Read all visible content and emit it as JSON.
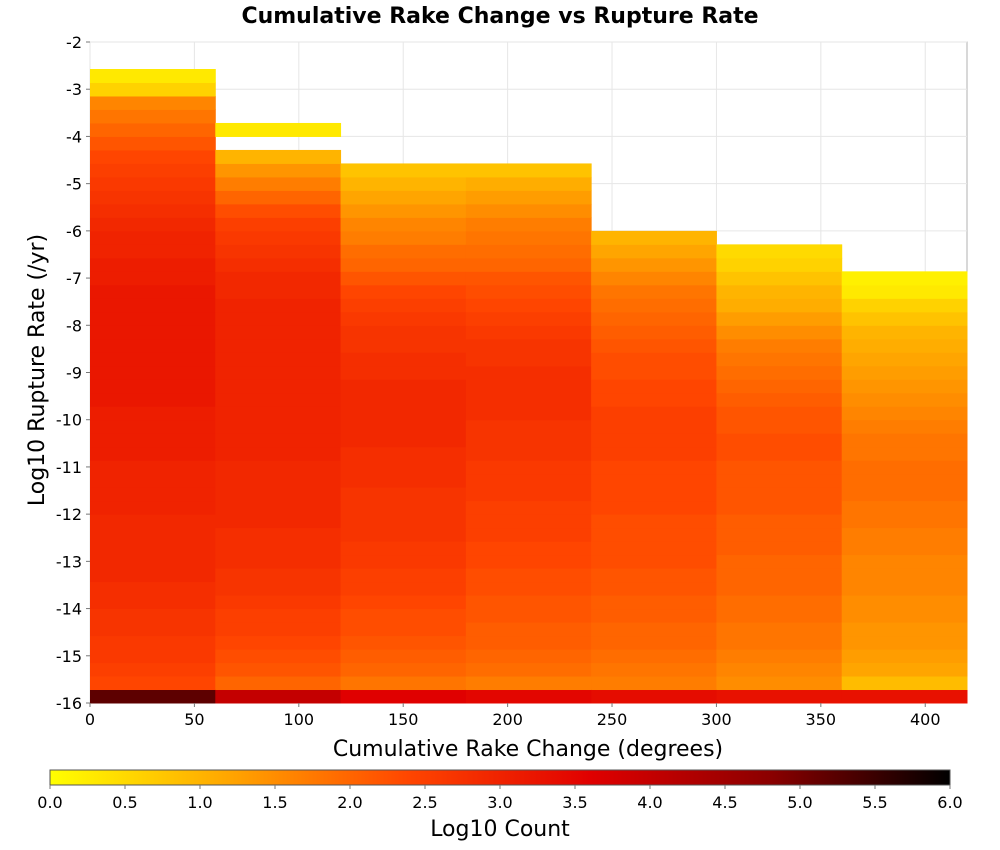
{
  "chart_data": {
    "type": "heatmap",
    "title": "Cumulative Rake Change vs Rupture Rate",
    "xlabel": "Cumulative Rake Change (degrees)",
    "ylabel": "Log10 Rupture Rate (/yr)",
    "colorbar_label": "Log10 Count",
    "xlim": [
      0,
      420
    ],
    "ylim": [
      -16,
      -2
    ],
    "x_ticks": [
      "0",
      "50",
      "100",
      "150",
      "200",
      "250",
      "300",
      "350",
      "400"
    ],
    "y_ticks": [
      "-2",
      "-3",
      "-4",
      "-5",
      "-6",
      "-7",
      "-8",
      "-9",
      "-10",
      "-11",
      "-12",
      "-13",
      "-14",
      "-15",
      "-16"
    ],
    "colorbar_ticks": [
      "0.0",
      "0.5",
      "1.0",
      "1.5",
      "2.0",
      "2.5",
      "3.0",
      "3.5",
      "4.0",
      "4.5",
      "5.0",
      "5.5",
      "6.0"
    ],
    "colorbar_range": [
      0,
      6
    ],
    "colormap": [
      "#ffff00",
      "#ffa500",
      "#ff4500",
      "#e00000",
      "#8b0000",
      "#000000"
    ],
    "x_bin_edges": [
      0,
      60,
      120,
      180,
      240,
      300,
      360,
      420
    ],
    "y_bin_start": -16,
    "y_bin_width": 0.2857,
    "columns": [
      {
        "x_range": [
          0,
          60
        ],
        "log10_counts": [
          5.2,
          2.4,
          2.5,
          2.6,
          2.6,
          2.7,
          2.7,
          2.8,
          2.8,
          2.9,
          2.9,
          2.9,
          2.9,
          2.9,
          3.0,
          3.0,
          3.0,
          3.0,
          3.1,
          3.1,
          3.1,
          3.1,
          3.2,
          3.2,
          3.2,
          3.2,
          3.2,
          3.2,
          3.2,
          3.2,
          3.2,
          3.1,
          3.1,
          3.0,
          3.0,
          2.9,
          2.8,
          2.7,
          2.6,
          2.5,
          2.4,
          2.2,
          2.0,
          1.8,
          1.6,
          0.6,
          0.3
        ]
      },
      {
        "x_range": [
          60,
          120
        ],
        "log10_counts": [
          4.0,
          2.0,
          2.2,
          2.3,
          2.4,
          2.5,
          2.5,
          2.6,
          2.7,
          2.7,
          2.8,
          2.8,
          2.8,
          2.9,
          2.9,
          2.9,
          2.9,
          2.9,
          3.0,
          3.0,
          3.0,
          3.0,
          3.0,
          3.0,
          3.0,
          3.0,
          3.0,
          3.0,
          3.0,
          3.0,
          2.9,
          2.9,
          2.8,
          2.7,
          2.6,
          2.5,
          2.3,
          2.0,
          1.7,
          1.4,
          1.0,
          null,
          0.3
        ]
      },
      {
        "x_range": [
          120,
          180
        ],
        "log10_counts": [
          3.6,
          1.8,
          2.0,
          2.1,
          2.2,
          2.3,
          2.3,
          2.4,
          2.5,
          2.5,
          2.6,
          2.6,
          2.7,
          2.7,
          2.7,
          2.7,
          2.8,
          2.8,
          2.8,
          2.9,
          2.9,
          2.9,
          2.9,
          2.9,
          2.8,
          2.8,
          2.7,
          2.7,
          2.6,
          2.5,
          2.4,
          2.2,
          2.0,
          1.9,
          1.7,
          1.6,
          1.4,
          1.2,
          1.0,
          0.8
        ]
      },
      {
        "x_range": [
          180,
          240
        ],
        "log10_counts": [
          3.5,
          1.7,
          1.9,
          2.0,
          2.1,
          2.1,
          2.2,
          2.2,
          2.3,
          2.3,
          2.4,
          2.4,
          2.5,
          2.5,
          2.5,
          2.6,
          2.6,
          2.6,
          2.7,
          2.7,
          2.7,
          2.8,
          2.8,
          2.8,
          2.8,
          2.7,
          2.7,
          2.6,
          2.5,
          2.4,
          2.3,
          2.2,
          2.0,
          1.9,
          1.8,
          1.7,
          1.5,
          1.3,
          1.1,
          0.8
        ]
      },
      {
        "x_range": [
          240,
          300
        ],
        "log10_counts": [
          3.4,
          1.7,
          1.8,
          1.9,
          2.0,
          2.0,
          2.1,
          2.1,
          2.2,
          2.2,
          2.3,
          2.3,
          2.3,
          2.3,
          2.4,
          2.4,
          2.4,
          2.4,
          2.5,
          2.5,
          2.5,
          2.5,
          2.4,
          2.4,
          2.3,
          2.3,
          2.2,
          2.1,
          2.0,
          1.9,
          1.8,
          1.6,
          1.4,
          1.2,
          1.0
        ]
      },
      {
        "x_range": [
          300,
          360
        ],
        "log10_counts": [
          3.3,
          1.5,
          1.6,
          1.7,
          1.8,
          1.8,
          1.9,
          1.9,
          2.0,
          2.0,
          2.0,
          2.1,
          2.1,
          2.1,
          2.2,
          2.2,
          2.2,
          2.2,
          2.3,
          2.3,
          2.2,
          2.2,
          2.1,
          2.0,
          1.9,
          1.8,
          1.7,
          1.5,
          1.3,
          1.1,
          1.0,
          0.8,
          0.6,
          0.5
        ]
      },
      {
        "x_range": [
          360,
          420
        ],
        "log10_counts": [
          3.3,
          0.9,
          1.2,
          1.3,
          1.4,
          1.4,
          1.5,
          1.5,
          1.6,
          1.6,
          1.6,
          1.7,
          1.7,
          1.8,
          1.8,
          1.9,
          1.9,
          1.9,
          1.8,
          1.8,
          1.7,
          1.6,
          1.5,
          1.4,
          1.3,
          1.2,
          1.1,
          1.0,
          0.8,
          0.6,
          0.3,
          0.2
        ]
      }
    ]
  }
}
